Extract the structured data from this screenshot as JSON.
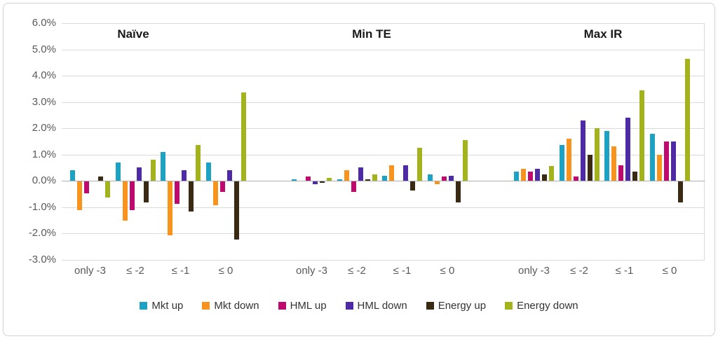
{
  "chart_data": {
    "type": "bar",
    "title": "",
    "section_titles": [
      "Naïve",
      "Min TE",
      "Max IR"
    ],
    "categories": [
      "only -3",
      "≤ -2",
      "≤ -1",
      "≤ 0"
    ],
    "y_axis": {
      "tick_values": [
        6,
        5,
        4,
        3,
        2,
        1,
        0,
        -1,
        -2,
        -3
      ],
      "tick_labels": [
        "6.0%",
        "5.0%",
        "4.0%",
        "3.0%",
        "2.0%",
        "1.0%",
        "0.0%",
        "-1.0%",
        "-2.0%",
        "-3.0%"
      ],
      "min": -3,
      "max": 6,
      "unit": "%",
      "grid": true
    },
    "legend_position": "bottom",
    "series": [
      {
        "name": "Mkt up",
        "color": "#1ea2c4",
        "values": [
          [
            0.4,
            0.7,
            1.1,
            0.7
          ],
          [
            0.05,
            0.05,
            0.2,
            0.25
          ],
          [
            0.35,
            1.35,
            1.9,
            1.8
          ]
        ]
      },
      {
        "name": "Mkt down",
        "color": "#f8941d",
        "values": [
          [
            -1.1,
            -1.5,
            -2.05,
            -0.9
          ],
          [
            0.0,
            0.4,
            0.6,
            -0.1
          ],
          [
            0.45,
            1.6,
            1.3,
            1.0
          ]
        ]
      },
      {
        "name": "HML up",
        "color": "#be0a6e",
        "values": [
          [
            -0.45,
            -1.1,
            -0.85,
            -0.4
          ],
          [
            0.15,
            -0.4,
            0.0,
            0.15
          ],
          [
            0.35,
            0.15,
            0.6,
            1.5
          ]
        ]
      },
      {
        "name": "HML down",
        "color": "#4e2aa6",
        "values": [
          [
            0.0,
            0.5,
            0.4,
            0.4
          ],
          [
            -0.1,
            0.5,
            0.6,
            0.2
          ],
          [
            0.45,
            2.3,
            2.4,
            1.5
          ]
        ]
      },
      {
        "name": "Energy up",
        "color": "#3a2a14",
        "values": [
          [
            0.15,
            -0.8,
            -1.15,
            -2.2
          ],
          [
            -0.05,
            0.05,
            -0.35,
            -0.8
          ],
          [
            0.25,
            1.0,
            0.35,
            -0.8
          ]
        ]
      },
      {
        "name": "Energy down",
        "color": "#a3b31c",
        "values": [
          [
            -0.6,
            0.8,
            1.35,
            3.35
          ],
          [
            0.1,
            0.25,
            1.25,
            1.55
          ],
          [
            0.55,
            2.0,
            3.45,
            4.65
          ]
        ]
      }
    ],
    "colors": {
      "gridline": "#dadada",
      "zero_line": "#b0b0b0",
      "tick_text": "#595959",
      "title_text": "#1a1a1a",
      "background": "#ffffff",
      "border": "#d2d2d2"
    }
  }
}
